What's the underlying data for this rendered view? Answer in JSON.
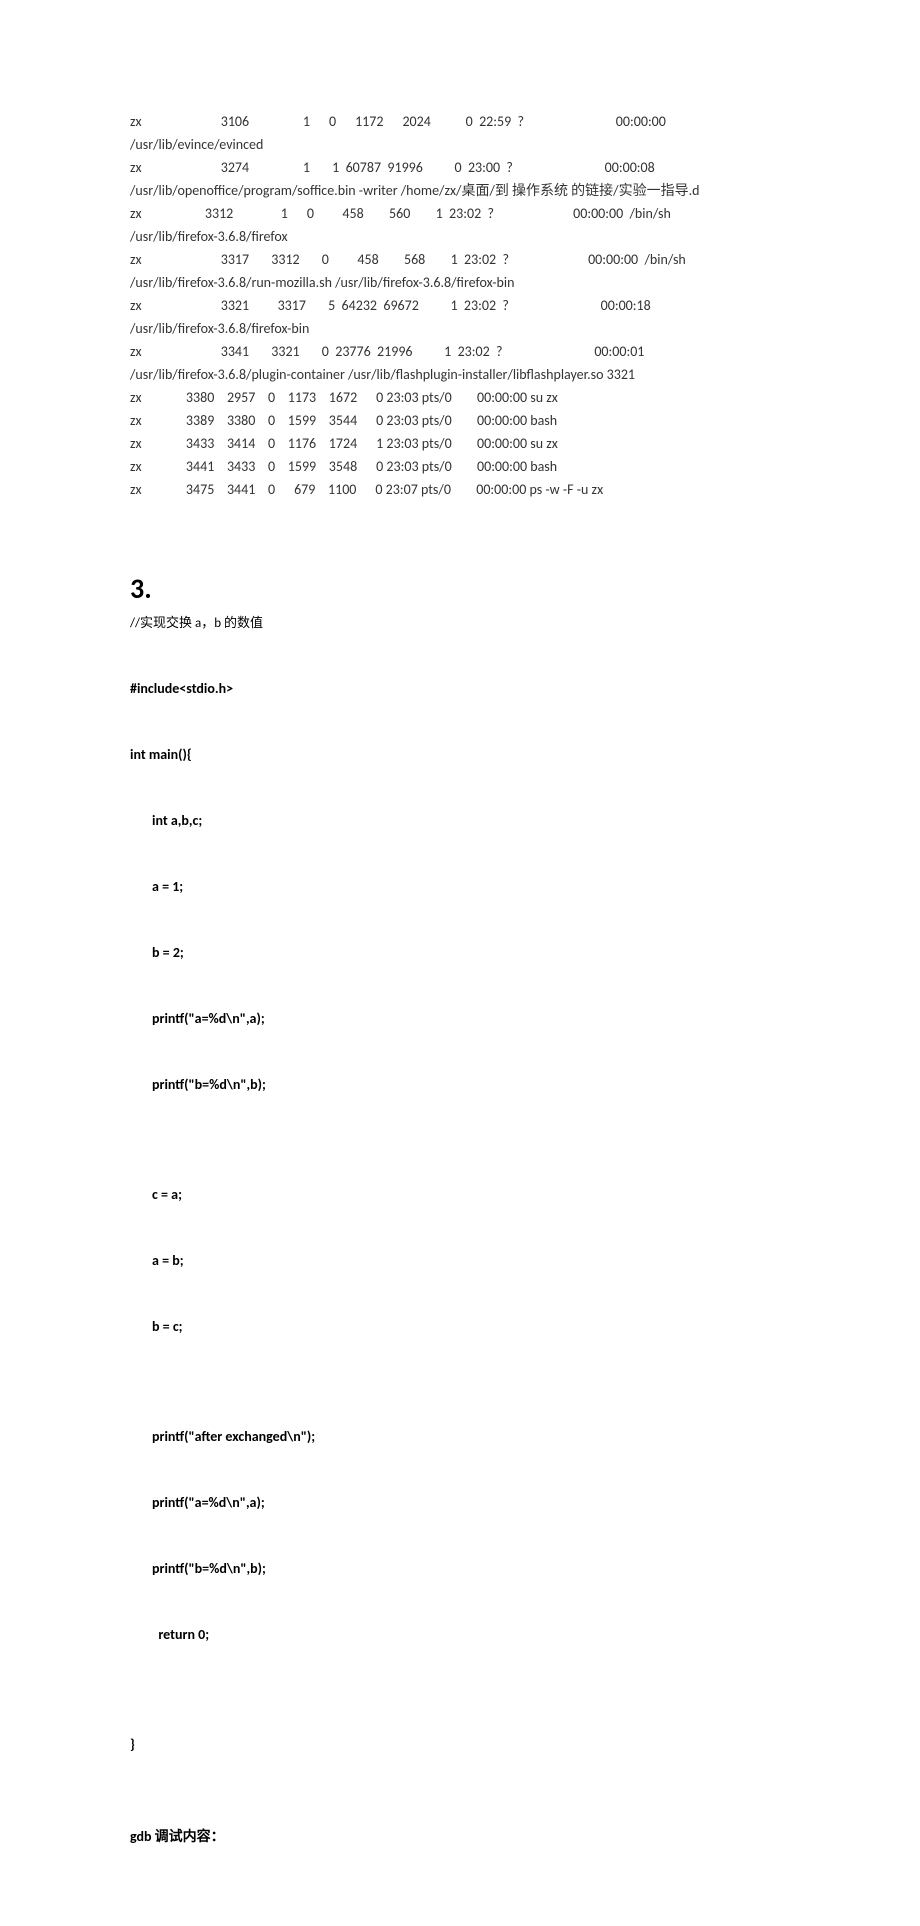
{
  "ps": {
    "r1": "zx                         3106                 1      0      1172      2024           0  22:59  ?                             00:00:00",
    "r1c": "/usr/lib/evince/evinced",
    "r2": "zx                         3274                 1       1  60787  91996          0  23:00  ?                             00:00:08",
    "r2c": "/usr/lib/openoffice/program/soffice.bin -writer /home/zx/桌面/到  操作系统  的链接/实验一指导.d",
    "r3": "zx                    3312               1      0         458        560        1  23:02  ?                         00:00:00  /bin/sh",
    "r3c": "/usr/lib/firefox-3.6.8/firefox",
    "r4": "zx                         3317       3312       0         458        568        1  23:02  ?                         00:00:00  /bin/sh",
    "r4c": "/usr/lib/firefox-3.6.8/run-mozilla.sh /usr/lib/firefox-3.6.8/firefox-bin",
    "r5": "zx                         3321         3317       5  64232  69672          1  23:02  ?                             00:00:18",
    "r5c": "/usr/lib/firefox-3.6.8/firefox-bin",
    "r6": "zx                         3341       3321       0  23776  21996          1  23:02  ?                             00:00:01",
    "r6c": "/usr/lib/firefox-3.6.8/plugin-container /usr/lib/flashplugin-installer/libflashplayer.so 3321",
    "r7": "zx              3380    2957    0    1173    1672      0 23:03 pts/0        00:00:00 su zx",
    "r8": "zx              3389    3380    0    1599    3544      0 23:03 pts/0        00:00:00 bash",
    "r9": "zx              3433    3414    0    1176    1724      1 23:03 pts/0        00:00:00 su zx",
    "r10": "zx              3441    3433    0    1599    3548      0 23:03 pts/0        00:00:00 bash",
    "r11": "zx              3475    3441    0      679    1100      0 23:07 pts/0        00:00:00 ps -w -F -u zx"
  },
  "section": {
    "heading": "3.",
    "comment": "//实现交换 a，b 的数值"
  },
  "code": {
    "l1": "#include<stdio.h>",
    "l2": "int main(){",
    "l3": "int a,b,c;",
    "l4": "a = 1;",
    "l5": "b = 2;",
    "l6": "printf(\"a=%d\\n\",a);",
    "l7": "printf(\"b=%d\\n\",b);",
    "l8": "",
    "l9": "c = a;",
    "l10": "a = b;",
    "l11": "b = c;",
    "l12": "",
    "l13": "printf(\"after exchanged\\n\");",
    "l14": "printf(\"a=%d\\n\",a);",
    "l15": "printf(\"b=%d\\n\",b);",
    "l16": "  return 0;",
    "l17": "",
    "l18": "}"
  },
  "gdb": {
    "label": "gdb  调试内容："
  }
}
